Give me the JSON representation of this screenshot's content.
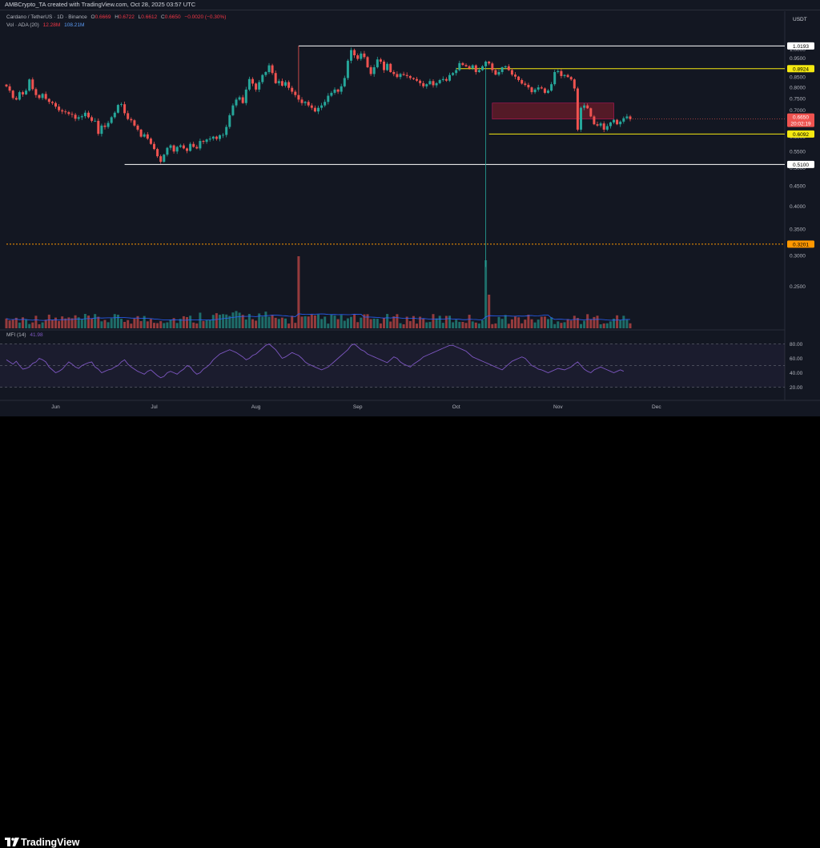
{
  "header": {
    "text": "AMBCrypto_TA created with TradingView.com, Oct 28, 2025 03:57 UTC"
  },
  "legend": {
    "symbol": "Cardano / TetherUS · 1D · Binance",
    "o_label": "O",
    "o_value": "0.6669",
    "h_label": "H",
    "h_value": "0.6722",
    "l_label": "L",
    "l_value": "0.6612",
    "c_label": "C",
    "c_value": "0.6650",
    "change": "−0.0020 (−0.30%)",
    "vol_label": "Vol · ADA (20)",
    "vol_value1": "12.28M",
    "vol_value2": "108.21M",
    "mfi_label": "MFI (14)",
    "mfi_value": "41.98"
  },
  "footer": {
    "brand": "TradingView"
  },
  "colors": {
    "background": "#131722",
    "up": "#26a69a",
    "down": "#ef5350",
    "support_line": "#ffffff",
    "yellow_line": "#f5e911",
    "orange_line": "#ff9800",
    "supply_zone": "#8b1e2c",
    "mfi_line": "#7e57c2",
    "vol_ma": "#2962ff"
  },
  "chart_data": {
    "type": "candlestick",
    "title": "Cardano / TetherUS · 1D · Binance",
    "currency": "USDT",
    "x_start": "2025-05-17",
    "x_tick_labels": [
      "Jun",
      "Jul",
      "Aug",
      "Sep",
      "Oct",
      "Nov",
      "Dec"
    ],
    "y_scale": "log",
    "ylim": [
      0.21,
      1.08
    ],
    "y_tick_labels": [
      "0.2500",
      "0.3000",
      "0.3500",
      "0.4000",
      "0.4500",
      "0.5000",
      "0.5500",
      "0.6000",
      "0.6500",
      "0.7000",
      "0.7500",
      "0.8000",
      "0.8500",
      "0.9000",
      "0.9500",
      "1.0000"
    ],
    "closes": [
      0.805,
      0.785,
      0.752,
      0.745,
      0.778,
      0.768,
      0.785,
      0.838,
      0.792,
      0.765,
      0.752,
      0.77,
      0.748,
      0.735,
      0.73,
      0.715,
      0.7,
      0.695,
      0.692,
      0.685,
      0.682,
      0.666,
      0.672,
      0.676,
      0.69,
      0.672,
      0.658,
      0.658,
      0.61,
      0.64,
      0.635,
      0.65,
      0.672,
      0.69,
      0.722,
      0.725,
      0.688,
      0.665,
      0.66,
      0.64,
      0.625,
      0.6,
      0.608,
      0.593,
      0.575,
      0.558,
      0.535,
      0.518,
      0.54,
      0.562,
      0.57,
      0.55,
      0.565,
      0.57,
      0.56,
      0.552,
      0.575,
      0.565,
      0.56,
      0.585,
      0.582,
      0.59,
      0.593,
      0.6,
      0.592,
      0.605,
      0.606,
      0.635,
      0.68,
      0.72,
      0.745,
      0.755,
      0.73,
      0.79,
      0.84,
      0.818,
      0.79,
      0.825,
      0.86,
      0.875,
      0.91,
      0.87,
      0.82,
      0.83,
      0.808,
      0.825,
      0.798,
      0.78,
      0.765,
      0.745,
      0.73,
      0.735,
      0.72,
      0.71,
      0.695,
      0.71,
      0.72,
      0.735,
      0.762,
      0.775,
      0.79,
      0.78,
      0.805,
      0.845,
      0.935,
      0.995,
      0.965,
      0.945,
      0.975,
      0.955,
      0.9,
      0.865,
      0.9,
      0.942,
      0.93,
      0.885,
      0.918,
      0.875,
      0.865,
      0.85,
      0.865,
      0.86,
      0.855,
      0.845,
      0.84,
      0.832,
      0.82,
      0.805,
      0.815,
      0.83,
      0.81,
      0.82,
      0.835,
      0.84,
      0.832,
      0.86,
      0.87,
      0.885,
      0.922,
      0.912,
      0.905,
      0.895,
      0.91,
      0.875,
      0.885,
      0.905,
      0.93,
      0.92,
      0.885,
      0.862,
      0.875,
      0.9,
      0.905,
      0.885,
      0.862,
      0.852,
      0.835,
      0.818,
      0.812,
      0.8,
      0.778,
      0.79,
      0.8,
      0.795,
      0.775,
      0.785,
      0.815,
      0.875,
      0.88,
      0.855,
      0.86,
      0.85,
      0.838,
      0.795,
      0.625,
      0.71,
      0.72,
      0.708,
      0.675,
      0.645,
      0.64,
      0.648,
      0.625,
      0.638,
      0.652,
      0.662,
      0.645,
      0.655,
      0.668,
      0.675,
      0.665
    ],
    "key_levels": [
      {
        "label": "1.0193",
        "value": 1.0193,
        "color": "#ffffff"
      },
      {
        "label": "0.8924",
        "value": 0.8924,
        "color": "#f5e911"
      },
      {
        "label": "0.6092",
        "value": 0.6092,
        "color": "#f5e911"
      },
      {
        "label": "0.5100",
        "value": 0.51,
        "color": "#ffffff"
      },
      {
        "label": "0.3201",
        "value": 0.3201,
        "color": "#ff9800"
      }
    ],
    "current_price": {
      "label": "0.6650",
      "countdown": "20:02:19"
    },
    "supply_zone": {
      "from_date": "2025-10-12",
      "to_date": "2025-11-18",
      "low": 0.665,
      "high": 0.73
    },
    "volume": {
      "name": "Vol · ADA (20)",
      "last": "12.28M",
      "ma": "108.21M",
      "spike_dates": [
        "2025-08-14",
        "2025-10-10"
      ]
    },
    "mfi": {
      "name": "MFI (14)",
      "last": "41.98",
      "ylim": [
        15,
        85
      ],
      "y_tick_labels": [
        "80.00",
        "60.00",
        "40.00",
        "20.00"
      ],
      "values": [
        58,
        55,
        52,
        56,
        50,
        45,
        46,
        48,
        53,
        55,
        60,
        58,
        55,
        48,
        44,
        40,
        42,
        45,
        50,
        55,
        52,
        48,
        46,
        50,
        52,
        54,
        55,
        48,
        45,
        40,
        42,
        44,
        45,
        48,
        50,
        55,
        58,
        52,
        48,
        45,
        42,
        40,
        38,
        42,
        44,
        40,
        36,
        33,
        35,
        40,
        42,
        40,
        38,
        42,
        45,
        50,
        48,
        42,
        38,
        40,
        45,
        48,
        52,
        58,
        62,
        66,
        68,
        70,
        72,
        70,
        68,
        65,
        62,
        58,
        60,
        64,
        66,
        70,
        74,
        78,
        80,
        76,
        72,
        66,
        60,
        62,
        65,
        68,
        66,
        64,
        60,
        55,
        52,
        50,
        48,
        46,
        44,
        46,
        48,
        52,
        56,
        60,
        64,
        68,
        72,
        78,
        80,
        76,
        72,
        70,
        66,
        64,
        62,
        60,
        58,
        56,
        54,
        58,
        62,
        60,
        55,
        52,
        50,
        48,
        52,
        55,
        58,
        62,
        64,
        66,
        68,
        70,
        72,
        74,
        76,
        78,
        78,
        76,
        74,
        72,
        70,
        66,
        62,
        60,
        58,
        56,
        54,
        52,
        50,
        48,
        46,
        44,
        48,
        52,
        56,
        58,
        60,
        62,
        60,
        55,
        50,
        48,
        45,
        44,
        42,
        40,
        42,
        44,
        46,
        45,
        44,
        46,
        48,
        52,
        55,
        50,
        45,
        42,
        40,
        44,
        46,
        48,
        46,
        44,
        42,
        40,
        42,
        44,
        42
      ]
    }
  }
}
